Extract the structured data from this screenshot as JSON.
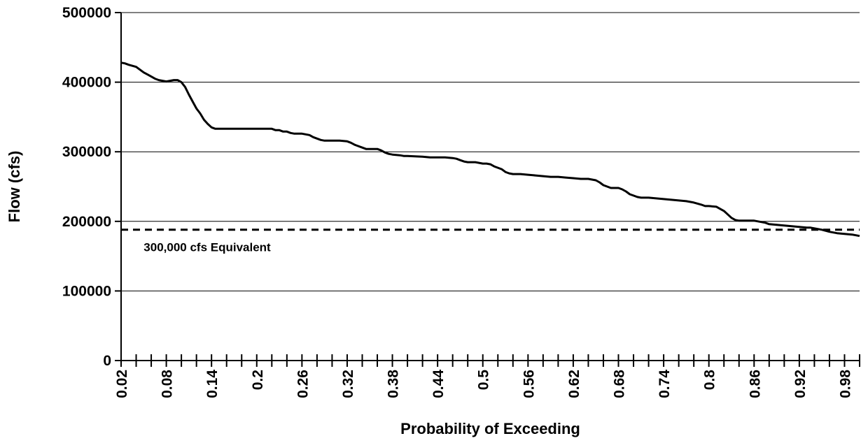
{
  "chart_data": {
    "type": "line",
    "title": "",
    "xlabel": "Probability of Exceeding",
    "ylabel": "Flow (cfs)",
    "xlim": [
      0.02,
      1.0
    ],
    "ylim": [
      0,
      500000
    ],
    "grid": {
      "horizontal": true,
      "vertical": false
    },
    "legend": "none",
    "y_ticks": [
      0,
      100000,
      200000,
      300000,
      400000,
      500000
    ],
    "y_tick_labels": [
      "0",
      "100000",
      "200000",
      "300000",
      "400000",
      "500000"
    ],
    "x_tick_labels": [
      "0.02",
      "0.08",
      "0.14",
      "0.2",
      "0.26",
      "0.32",
      "0.38",
      "0.44",
      "0.5",
      "0.56",
      "0.62",
      "0.68",
      "0.74",
      "0.8",
      "0.86",
      "0.92",
      "0.98"
    ],
    "x_tick_values": [
      0.02,
      0.08,
      0.14,
      0.2,
      0.26,
      0.32,
      0.38,
      0.44,
      0.5,
      0.56,
      0.62,
      0.68,
      0.74,
      0.8,
      0.86,
      0.92,
      0.98
    ],
    "series": [
      {
        "style": "solid",
        "color": "#000000",
        "x": [
          0.02,
          0.025,
          0.03,
          0.04,
          0.045,
          0.05,
          0.055,
          0.06,
          0.065,
          0.07,
          0.08,
          0.085,
          0.09,
          0.095,
          0.1,
          0.105,
          0.11,
          0.115,
          0.12,
          0.125,
          0.13,
          0.135,
          0.14,
          0.145,
          0.15,
          0.16,
          0.18,
          0.2,
          0.22,
          0.225,
          0.23,
          0.235,
          0.24,
          0.245,
          0.25,
          0.26,
          0.265,
          0.27,
          0.275,
          0.28,
          0.285,
          0.29,
          0.3,
          0.31,
          0.32,
          0.325,
          0.33,
          0.34,
          0.345,
          0.35,
          0.36,
          0.365,
          0.37,
          0.375,
          0.38,
          0.39,
          0.395,
          0.4,
          0.42,
          0.43,
          0.44,
          0.45,
          0.46,
          0.465,
          0.47,
          0.475,
          0.48,
          0.49,
          0.495,
          0.5,
          0.505,
          0.51,
          0.515,
          0.52,
          0.525,
          0.53,
          0.535,
          0.54,
          0.55,
          0.56,
          0.57,
          0.58,
          0.59,
          0.6,
          0.61,
          0.62,
          0.63,
          0.64,
          0.645,
          0.65,
          0.655,
          0.66,
          0.665,
          0.67,
          0.68,
          0.685,
          0.69,
          0.695,
          0.7,
          0.705,
          0.71,
          0.72,
          0.73,
          0.74,
          0.75,
          0.76,
          0.77,
          0.78,
          0.79,
          0.795,
          0.8,
          0.81,
          0.815,
          0.82,
          0.825,
          0.83,
          0.835,
          0.84,
          0.85,
          0.86,
          0.865,
          0.87,
          0.875,
          0.88,
          0.89,
          0.9,
          0.91,
          0.92,
          0.93,
          0.935,
          0.94,
          0.945,
          0.95,
          0.96,
          0.97,
          0.98,
          0.99,
          1.0
        ],
        "y": [
          428000,
          427000,
          425000,
          422000,
          418000,
          414000,
          411000,
          408000,
          405000,
          403000,
          401000,
          402000,
          403000,
          403000,
          400000,
          393000,
          382000,
          372000,
          362000,
          355000,
          346000,
          340000,
          335000,
          333000,
          333000,
          333000,
          333000,
          333000,
          333000,
          331000,
          331000,
          329000,
          329000,
          327000,
          326000,
          326000,
          325000,
          324000,
          321000,
          319000,
          317000,
          316000,
          316000,
          316000,
          315000,
          313000,
          310000,
          306000,
          304000,
          304000,
          304000,
          302000,
          299000,
          297000,
          296000,
          295000,
          294000,
          294000,
          293000,
          292000,
          292000,
          292000,
          291000,
          290000,
          288000,
          286000,
          285000,
          285000,
          284000,
          283000,
          283000,
          282000,
          279000,
          277000,
          275000,
          271000,
          269000,
          268000,
          268000,
          267000,
          266000,
          265000,
          264000,
          264000,
          263000,
          262000,
          261000,
          261000,
          260000,
          259000,
          256000,
          252000,
          250000,
          248000,
          248000,
          246000,
          243000,
          239000,
          237000,
          235000,
          234000,
          234000,
          233000,
          232000,
          231000,
          230000,
          229000,
          227000,
          224000,
          222000,
          222000,
          221000,
          218000,
          215000,
          210000,
          205000,
          202000,
          201000,
          201000,
          201000,
          200000,
          199000,
          198000,
          196000,
          195000,
          194000,
          193000,
          192000,
          191000,
          191000,
          190000,
          189000,
          188000,
          185000,
          183000,
          182000,
          181000,
          179000
        ]
      },
      {
        "style": "dashed",
        "color": "#000000",
        "x": [
          0.02,
          1.0
        ],
        "y": [
          188000,
          188000
        ]
      }
    ],
    "annotations": [
      {
        "text": "300,000 cfs Equivalent",
        "x": 0.05,
        "y": 163000
      }
    ]
  }
}
